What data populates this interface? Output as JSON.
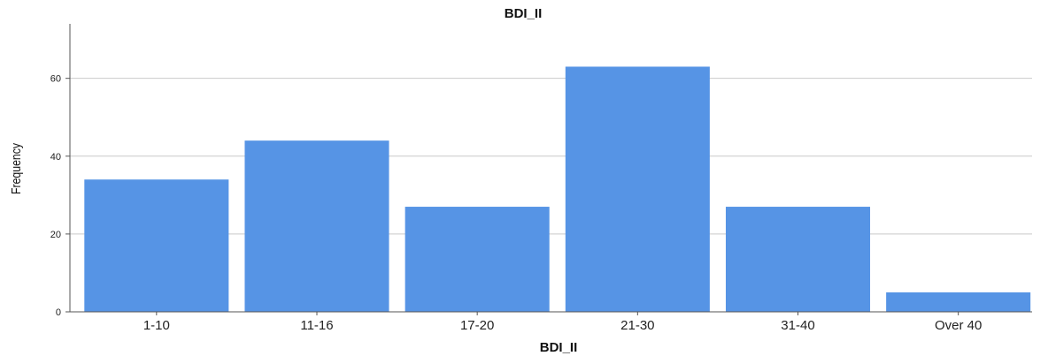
{
  "chart_data": {
    "type": "bar",
    "title": "BDI_II",
    "xlabel": "BDI_II",
    "ylabel": "Frequency",
    "categories": [
      "1-10",
      "11-16",
      "17-20",
      "21-30",
      "31-40",
      "Over 40"
    ],
    "values": [
      34,
      44,
      27,
      63,
      27,
      5
    ],
    "ylim": [
      0,
      74
    ],
    "yticks": [
      0,
      20,
      40,
      60
    ],
    "ytick_labels": [
      "0",
      "20",
      "40",
      "60"
    ],
    "grid": true,
    "legend": "none",
    "colors": {
      "bar": "#5694E5",
      "grid": "#c9c9c9",
      "axis": "#555555"
    }
  }
}
